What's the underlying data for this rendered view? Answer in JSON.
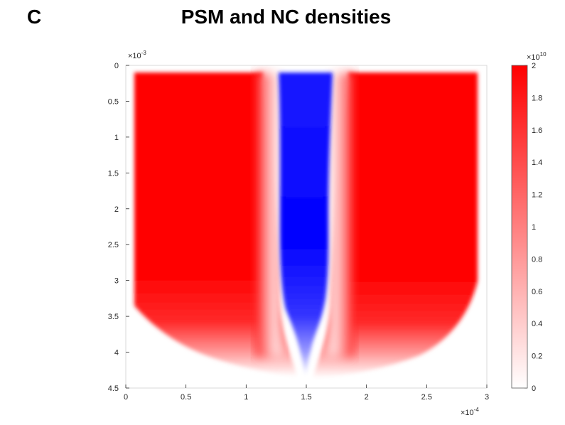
{
  "panel": {
    "letter": "C",
    "title": "PSM and NC densities"
  },
  "chart_data": {
    "type": "heatmap",
    "title": "PSM and NC densities",
    "xlabel": "",
    "ylabel": "",
    "xlim": [
      0,
      3
    ],
    "ylim": [
      4.5,
      0
    ],
    "x_ticks": [
      "0",
      "0.5",
      "1",
      "1.5",
      "2",
      "2.5",
      "3"
    ],
    "y_ticks": [
      "0",
      "0.5",
      "1",
      "1.5",
      "2",
      "2.5",
      "3",
      "3.5",
      "4",
      "4.5"
    ],
    "x_exponent": {
      "base": "×10",
      "power": "-4"
    },
    "y_exponent": {
      "base": "×10",
      "power": "-3"
    },
    "y_direction": "reversed",
    "grid": false,
    "colorbar": {
      "range": [
        0,
        2
      ],
      "ticks": [
        "0",
        "0.2",
        "0.4",
        "0.6",
        "0.8",
        "1",
        "1.2",
        "1.4",
        "1.6",
        "1.8",
        "2"
      ],
      "exponent": {
        "base": "×10",
        "power": "10"
      },
      "colormap": "white-to-red",
      "color_low": "#ffffff",
      "color_high": "#ff0000"
    },
    "series": [
      {
        "name": "PSM",
        "color": "#ff0000",
        "region": "left and right of the midline, saturating at 2 down to y ≈ 3, fading to 0 toward y ≈ 4.3"
      },
      {
        "name": "NC",
        "color": "#0000ff",
        "region": "central band near x ≈ 1.5, width ≈ 0.4, from y = 0 to y ≈ 4.2, narrowing at the bottom"
      }
    ]
  }
}
